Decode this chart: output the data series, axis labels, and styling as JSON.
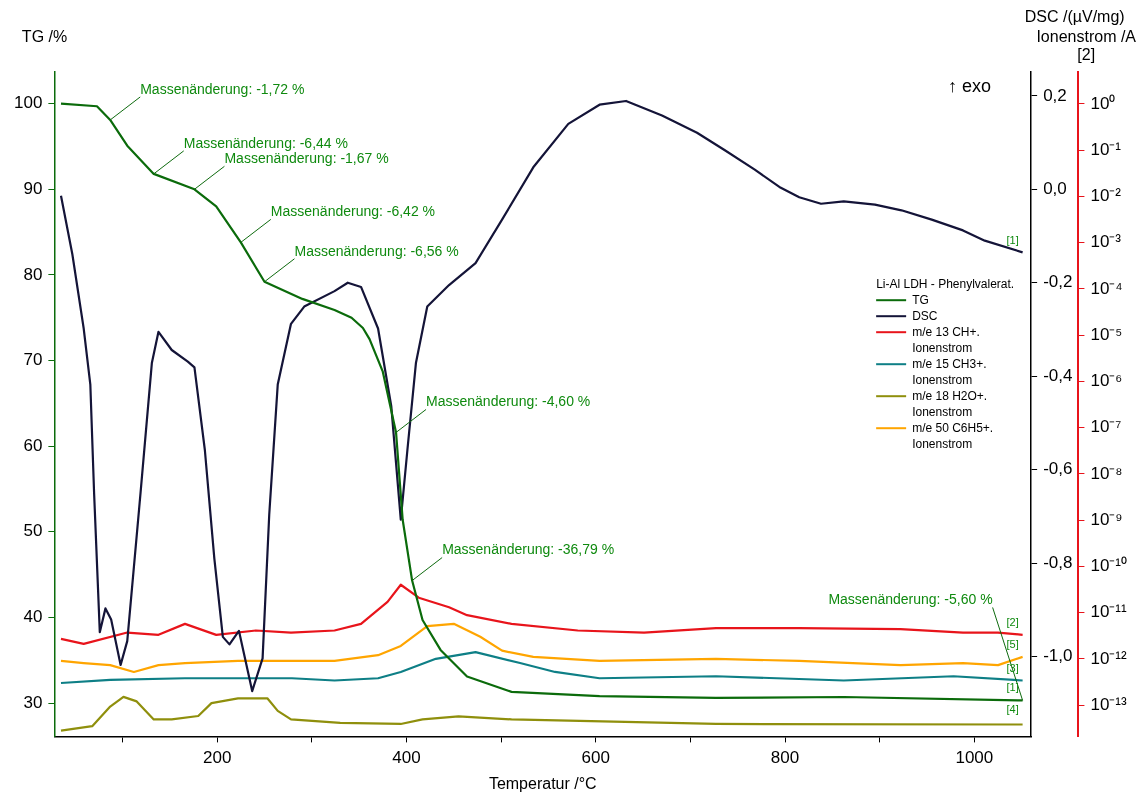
{
  "chart_data": {
    "type": "line",
    "xlabel": "Temperatur /°C",
    "ylabel": "TG /%",
    "y2label": "DSC /(µV/mg)",
    "y3label": "Ionenstrom /A\n[2]",
    "legend_title": "Li-Al LDH - Phenylvalerat.",
    "legend": "right",
    "line_style": "solid",
    "xlim": [
      28,
      1060
    ],
    "xticks": [
      {
        "value": 100,
        "label": null
      },
      200,
      {
        "value": 300,
        "label": null
      },
      400,
      {
        "value": 500,
        "label": null
      },
      600,
      {
        "value": 700,
        "label": null
      },
      800,
      {
        "value": 900,
        "label": null
      },
      1000
    ],
    "ylim": [
      26.1,
      103.7
    ],
    "yticks": [
      30,
      40,
      50,
      60,
      70,
      80,
      90,
      100
    ],
    "y2lim": [
      -1.171,
      0.251
    ],
    "y2ticks": [
      {
        "value": 0.2,
        "label": "0,2"
      },
      {
        "value": 0,
        "label": "0,0"
      },
      {
        "value": -0.2,
        "label": "-0,2"
      },
      {
        "value": -0.4,
        "label": "-0,4"
      },
      {
        "value": -0.6,
        "label": "-0,6"
      },
      {
        "value": -0.8,
        "label": "-0,8"
      },
      {
        "value": -1,
        "label": "-1,0"
      }
    ],
    "y3lim": [
      2.1e-14,
      4.9
    ],
    "y3ticks": [
      {
        "value": 1,
        "label": "10⁰"
      },
      {
        "value": 0.1,
        "label": "10⁻¹"
      },
      {
        "value": 0.01,
        "label": "10⁻²"
      },
      {
        "value": 0.001,
        "label": "10⁻³"
      },
      {
        "value": 0.0001,
        "label": "10⁻⁴"
      },
      {
        "value": 1e-05,
        "label": "10⁻⁵"
      },
      {
        "value": 1e-06,
        "label": "10⁻⁶"
      },
      {
        "value": 1e-07,
        "label": "10⁻⁷"
      },
      {
        "value": 1e-08,
        "label": "10⁻⁸"
      },
      {
        "value": 1e-09,
        "label": "10⁻⁹"
      },
      {
        "value": 1e-10,
        "label": "10⁻¹⁰"
      },
      {
        "value": 1e-11,
        "label": "10⁻¹¹"
      },
      {
        "value": 1e-12,
        "label": "10⁻¹²"
      },
      {
        "value": 1e-13,
        "label": "10⁻¹³"
      }
    ],
    "log": "y3",
    "series": [
      {
        "name": "TG",
        "color": "#0b6b0b",
        "x": [
          35,
          73,
          87,
          105,
          133,
          176,
          199,
          225,
          250,
          290,
          324,
          342,
          354,
          361,
          375,
          389,
          396,
          406,
          417,
          436,
          464,
          511,
          604,
          727,
          862,
          1051
        ],
        "values": [
          100,
          99.7,
          98.1,
          95.1,
          91.8,
          90,
          88,
          83.8,
          79.2,
          77.2,
          75.9,
          75,
          73.8,
          72.5,
          68.7,
          61.6,
          51.4,
          44.3,
          39.7,
          36.2,
          33.1,
          31.3,
          30.8,
          30.6,
          30.7,
          30.3
        ]
      },
      {
        "name": "DSC",
        "color": "#141438",
        "axis": "y2",
        "x": [
          35,
          47,
          59,
          66,
          70,
          76,
          82,
          88,
          98,
          105,
          119,
          131,
          138,
          152,
          169,
          176,
          187,
          197,
          206,
          213,
          223,
          237,
          248,
          255,
          264,
          278,
          292,
          324,
          338,
          352,
          370,
          384,
          394,
          401,
          410,
          422,
          445,
          473,
          501,
          534,
          571,
          604,
          632,
          670,
          707,
          736,
          768,
          794,
          815,
          838,
          862,
          895,
          923,
          955,
          988,
          1011,
          1051
        ],
        "values": [
          -0.014,
          -0.139,
          -0.298,
          -0.418,
          -0.651,
          -0.948,
          -0.897,
          -0.921,
          -1.018,
          -0.967,
          -0.651,
          -0.372,
          -0.305,
          -0.344,
          -0.369,
          -0.381,
          -0.558,
          -0.79,
          -0.958,
          -0.974,
          -0.945,
          -1.074,
          -1.004,
          -0.697,
          -0.418,
          -0.288,
          -0.251,
          -0.218,
          -0.2,
          -0.209,
          -0.298,
          -0.465,
          -0.707,
          -0.558,
          -0.372,
          -0.251,
          -0.205,
          -0.158,
          -0.065,
          0.047,
          0.14,
          0.181,
          0.189,
          0.158,
          0.121,
          0.084,
          0.042,
          0.005,
          -0.017,
          -0.031,
          -0.026,
          -0.033,
          -0.045,
          -0.065,
          -0.088,
          -0.11,
          -0.135
        ]
      },
      {
        "name": "m/e 13 CH+.\nIonenstrom",
        "color": "#e8141b",
        "axis": "y3",
        "x": [
          35,
          59,
          105,
          138,
          166,
          199,
          241,
          278,
          324,
          352,
          380,
          394,
          413,
          445,
          464,
          511,
          581,
          651,
          727,
          815,
          922,
          988,
          1025,
          1051
        ],
        "values": [
          2.7e-12,
          2.1e-12,
          3.7e-12,
          3.3e-12,
          5.7e-12,
          3.3e-12,
          4.1e-12,
          3.7e-12,
          4.1e-12,
          5.7e-12,
          1.7e-11,
          4e-11,
          2.1e-11,
          1.3e-11,
          8.8e-12,
          5.7e-12,
          4.1e-12,
          3.7e-12,
          4.6e-12,
          4.6e-12,
          4.4e-12,
          3.7e-12,
          3.7e-12,
          3.3e-12
        ]
      },
      {
        "name": "m/e 15 CH3+.\nIonenstrom",
        "color": "#0e7f86",
        "axis": "y3",
        "x": [
          35,
          87,
          166,
          279,
          324,
          370,
          394,
          431,
          473,
          520,
          557,
          604,
          727,
          862,
          978,
          1051
        ],
        "values": [
          3e-13,
          3.5e-13,
          3.8e-13,
          3.8e-13,
          3.4e-13,
          3.8e-13,
          5.2e-13,
          1e-12,
          1.4e-12,
          8.1e-13,
          5.2e-13,
          3.8e-13,
          4.2e-13,
          3.4e-13,
          4.2e-13,
          3.4e-13
        ]
      },
      {
        "name": "m/e 18 H2O+.\nIonenstrom",
        "color": "#8f8f0c",
        "axis": "y3",
        "x": [
          35,
          68,
          87,
          101,
          115,
          133,
          152,
          180,
          194,
          222,
          241,
          253,
          264,
          278,
          330,
          394,
          417,
          455,
          511,
          727,
          1051
        ],
        "values": [
          2.8e-14,
          3.5e-14,
          9.3e-14,
          1.5e-13,
          1.2e-13,
          4.9e-14,
          4.9e-14,
          5.8e-14,
          1.1e-13,
          1.4e-13,
          1.4e-13,
          1.4e-13,
          7.5e-14,
          4.9e-14,
          4.1e-14,
          3.9e-14,
          4.9e-14,
          5.7e-14,
          4.9e-14,
          3.9e-14,
          3.8e-14
        ]
      },
      {
        "name": "m/e 50 C6H5+.\nIonenstrom",
        "color": "#ffa500",
        "axis": "y3",
        "x": [
          35,
          59,
          87,
          112,
          138,
          166,
          222,
          279,
          324,
          370,
          394,
          422,
          450,
          478,
          501,
          534,
          604,
          727,
          815,
          922,
          988,
          1025,
          1051
        ],
        "values": [
          9e-13,
          8.1e-13,
          7.3e-13,
          5.2e-13,
          7.3e-13,
          8.1e-13,
          9e-13,
          9e-13,
          9e-13,
          1.2e-12,
          1.9e-12,
          5.1e-12,
          5.7e-12,
          3e-12,
          1.5e-12,
          1.1e-12,
          9e-13,
          1e-12,
          9e-13,
          7.3e-13,
          8.1e-13,
          7.3e-13,
          1.1e-12
        ]
      }
    ],
    "annotations": [
      {
        "text": "Massenänderung: -1,72 %",
        "x": 87,
        "y": 98.1
      },
      {
        "text": "Massenänderung: -6,44 %",
        "x": 133,
        "y": 91.8
      },
      {
        "text": "Massenänderung: -1,67 %",
        "x": 176,
        "y": 90
      },
      {
        "text": "Massenänderung: -6,42 %",
        "x": 225,
        "y": 83.8
      },
      {
        "text": "Massenänderung: -6,56 %",
        "x": 250,
        "y": 79.2
      },
      {
        "text": "Massenänderung: -4,60 %",
        "x": 389,
        "y": 61.6
      },
      {
        "text": "Massenänderung: -36,79 %",
        "x": 406,
        "y": 44.3
      },
      {
        "text": "Massenänderung: -5,60 %",
        "x": 1051,
        "y": 30.3
      },
      "↑ exo",
      {
        "text": "[1]",
        "x": 1051,
        "y": 82.6
      },
      {
        "text": "[2]",
        "x": 1051,
        "y": 38
      },
      {
        "text": "[5]",
        "x": 1051,
        "y": 35.4
      },
      {
        "text": "[3]",
        "x": 1051,
        "y": 32.6
      },
      {
        "text": "[1]",
        "x": 1051,
        "y": 30.3
      },
      {
        "text": "[4]",
        "x": 1051,
        "y": 27.8
      }
    ]
  }
}
